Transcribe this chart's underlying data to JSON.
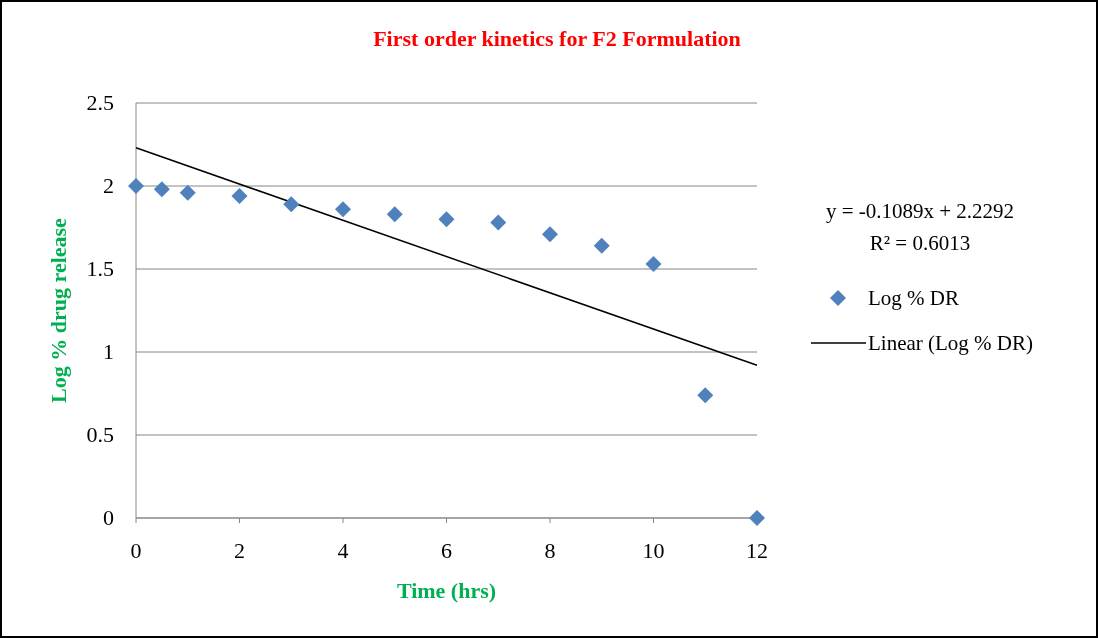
{
  "chart_data": {
    "type": "scatter",
    "title": "First order kinetics for F2 Formulation",
    "xlabel": "Time (hrs)",
    "ylabel": "Log % drug release",
    "xlim": [
      0,
      12
    ],
    "xticks": [
      0,
      2,
      4,
      6,
      8,
      10,
      12
    ],
    "ylim": [
      0,
      2.5
    ],
    "yticks": [
      0,
      0.5,
      1,
      1.5,
      2,
      2.5
    ],
    "grid": "y",
    "legend": "right",
    "series": [
      {
        "name": "Log % DR",
        "marker": "diamond",
        "color": "#4f81bd",
        "x": [
          0,
          0.5,
          1,
          2,
          3,
          4,
          5,
          6,
          7,
          8,
          9,
          10,
          11,
          12
        ],
        "values": [
          2.0,
          1.98,
          1.96,
          1.94,
          1.89,
          1.86,
          1.83,
          1.8,
          1.78,
          1.71,
          1.64,
          1.53,
          0.74,
          0
        ]
      },
      {
        "name": "Linear (Log % DR)",
        "type": "line",
        "marker": "none",
        "color": "#000000",
        "x": [
          0,
          12
        ],
        "values": [
          2.23,
          0.92
        ]
      }
    ],
    "annotations": [
      "y = -0.1089x + 2.2292",
      "R² = 0.6013"
    ]
  }
}
